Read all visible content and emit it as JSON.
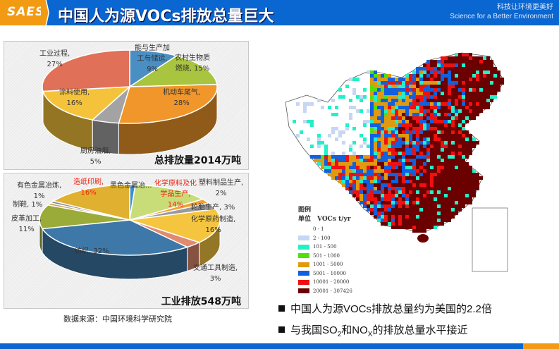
{
  "header": {
    "logo": "SAES",
    "title": "中国人为源VOCs排放总量巨大",
    "slogan_cn": "科技让环境更美好",
    "slogan_en": "Science for a Better Environment"
  },
  "chart_data": [
    {
      "type": "pie",
      "title": "总排放量2014万吨",
      "categories": [
        "能与生产加工与储运",
        "农村生物质燃烧",
        "机动车尾气",
        "厨房油烟",
        "涂料使用",
        "工业过程"
      ],
      "values": [
        9,
        15,
        28,
        5,
        16,
        27
      ],
      "labels": [
        [
          "能与生产加",
          "工与储运,",
          "9%"
        ],
        [
          "农村生物质",
          "燃烧, 15%"
        ],
        [
          "机动车尾气,",
          "28%"
        ],
        [
          "厨房油烟,",
          "5%"
        ],
        [
          "涂料使用,",
          "16%"
        ],
        [
          "工业过程,",
          "27%"
        ]
      ],
      "colors": [
        "#4a8fc4",
        "#a9c43e",
        "#f0962a",
        "#a3a3a3",
        "#f5c33b",
        "#e07058"
      ]
    },
    {
      "type": "pie",
      "title": "工业排放548万吨",
      "categories": [
        "黑色金属冶...",
        "化学原料及化学品生产",
        "塑料制品生产",
        "轮胎生产",
        "化学原药制造",
        "交通工具制造",
        "纺织",
        "皮革加工",
        "制鞋",
        "有色金属冶炼",
        "造纸印刷"
      ],
      "values": [
        1,
        14,
        2,
        3,
        16,
        3,
        32,
        11,
        1,
        1,
        16
      ],
      "labels": [
        [
          "黑色金属冶..."
        ],
        [
          "化学原料及化",
          "学品生产,",
          "14%"
        ],
        [
          "塑料制品生产,",
          "2%"
        ],
        [
          "轮胎生产, 3%"
        ],
        [
          "化学原药制造,",
          "16%"
        ],
        [
          "交通工具制造,",
          "3%"
        ],
        [
          "纺织, 32%"
        ],
        [
          "皮革加工,",
          "11%"
        ],
        [
          "制鞋, 1%"
        ],
        [
          "有色金属冶炼,",
          "1%"
        ],
        [
          "造纸印刷,",
          "16%"
        ]
      ],
      "colors": [
        "#3a8fd0",
        "#c8dc78",
        "#f0a030",
        "#9a9a9a",
        "#f5c540",
        "#e08a70",
        "#3d78a8",
        "#9aab3a",
        "#c8a060",
        "#8a8a8a",
        "#e0b030"
      ]
    }
  ],
  "source": "数据来源：中国环境科学研究院",
  "map": {
    "legend_title": "图例",
    "legend_unit": "单位　VOCs t/yr",
    "legend": [
      {
        "range": "0 - 1",
        "color": "#ffffff"
      },
      {
        "range": "2 - 100",
        "color": "#c6d6f4"
      },
      {
        "range": "101 - 500",
        "color": "#22f0c8"
      },
      {
        "range": "501 - 1000",
        "color": "#50e010"
      },
      {
        "range": "1001 - 5000",
        "color": "#e09a10"
      },
      {
        "range": "5001 - 10000",
        "color": "#1060e0"
      },
      {
        "range": "10001 - 20000",
        "color": "#f01010"
      },
      {
        "range": "20001 - 307426",
        "color": "#6a0000"
      }
    ]
  },
  "bullets": [
    {
      "text": "中国人为源VOCs排放总量约为美国的2.2倍"
    },
    {
      "pre": "与我国SO",
      "sub1": "2",
      "mid": "和NO",
      "sub2": "X",
      "post": "的排放总量水平接近"
    }
  ]
}
